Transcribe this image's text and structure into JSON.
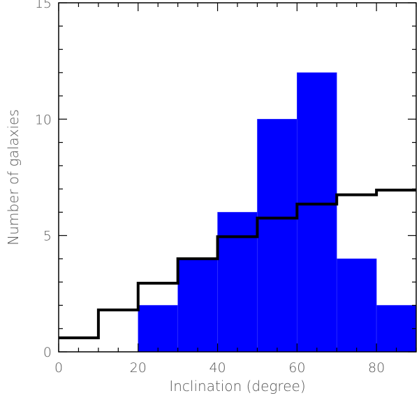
{
  "chart_data": {
    "type": "bar",
    "xlabel": "Inclination (degree)",
    "ylabel": "Number of galaxies",
    "xlim": [
      0,
      90
    ],
    "ylim": [
      0,
      15
    ],
    "x_ticks": [
      0,
      20,
      40,
      60,
      80
    ],
    "y_ticks": [
      0,
      5,
      10,
      15
    ],
    "grid": false,
    "bars": {
      "bin_edges": [
        0,
        10,
        20,
        30,
        40,
        50,
        60,
        70,
        80,
        90
      ],
      "values": [
        0,
        0,
        2,
        4,
        6,
        10,
        12,
        4,
        2
      ],
      "color": "#0000ff"
    },
    "step": {
      "bin_edges": [
        0,
        10,
        20,
        30,
        40,
        50,
        60,
        70,
        80,
        90
      ],
      "values": [
        0.6,
        1.8,
        2.95,
        4.0,
        4.95,
        5.75,
        6.35,
        6.75,
        6.95
      ],
      "color": "#000000"
    }
  }
}
